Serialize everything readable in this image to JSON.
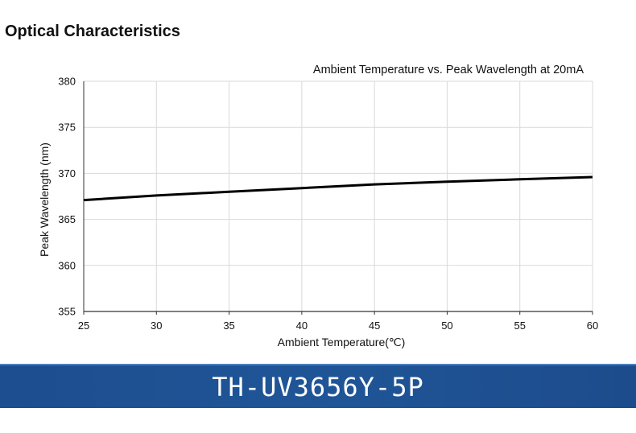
{
  "section": {
    "title": "Optical Characteristics"
  },
  "chart_data": {
    "type": "line",
    "title": "Ambient Temperature vs.  Peak Wavelength at 20mA",
    "xlabel": "Ambient Temperature(℃)",
    "ylabel": "Peak Wavelength (nm)",
    "xlim": [
      25,
      60
    ],
    "ylim": [
      355,
      380
    ],
    "xticks": [
      25,
      30,
      35,
      40,
      45,
      50,
      55,
      60
    ],
    "yticks": [
      355,
      360,
      365,
      370,
      375,
      380
    ],
    "grid": true,
    "series": [
      {
        "x": [
          25,
          30,
          35,
          40,
          45,
          50,
          55,
          60
        ],
        "values": [
          367.1,
          367.6,
          368.0,
          368.4,
          368.8,
          369.1,
          369.35,
          369.6
        ]
      }
    ]
  },
  "banner": {
    "text": "TH-UV3656Y-5P"
  }
}
